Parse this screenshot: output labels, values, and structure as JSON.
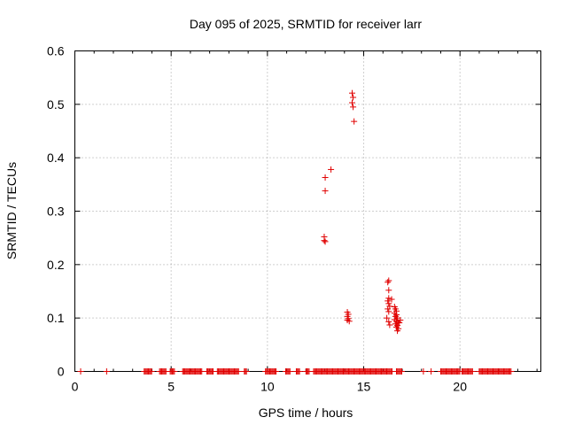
{
  "chart_data": {
    "type": "scatter",
    "title": "Day 095 of 2025, SRMTID for receiver larr",
    "xlabel": "GPS time / hours",
    "ylabel": "SRMTID / TECUs",
    "xlim": [
      0,
      24.2
    ],
    "ylim": [
      0,
      0.6
    ],
    "x_ticks": [
      0,
      5,
      10,
      15,
      20
    ],
    "y_ticks": [
      0,
      0.1,
      0.2,
      0.3,
      0.4,
      0.5,
      0.6
    ],
    "x_tick_labels": [
      "0",
      "5",
      "10",
      "15",
      "20"
    ],
    "y_tick_labels": [
      "0",
      "0.1",
      "0.2",
      "0.3",
      "0.4",
      "0.5",
      "0.6"
    ],
    "grid": true,
    "marker": "+",
    "color": "#e00000",
    "series": [
      {
        "name": "SRMTID",
        "points": [
          [
            13.0,
            0.363
          ],
          [
            13.0,
            0.338
          ],
          [
            13.3,
            0.378
          ],
          [
            12.95,
            0.252
          ],
          [
            12.95,
            0.245
          ],
          [
            13.0,
            0.243
          ],
          [
            14.4,
            0.521
          ],
          [
            14.45,
            0.513
          ],
          [
            14.4,
            0.503
          ],
          [
            14.45,
            0.495
          ],
          [
            14.5,
            0.468
          ],
          [
            14.15,
            0.111
          ],
          [
            14.2,
            0.107
          ],
          [
            14.15,
            0.103
          ],
          [
            14.2,
            0.099
          ],
          [
            14.15,
            0.096
          ],
          [
            14.25,
            0.094
          ],
          [
            16.3,
            0.17
          ],
          [
            16.25,
            0.167
          ],
          [
            16.3,
            0.152
          ],
          [
            16.3,
            0.137
          ],
          [
            16.25,
            0.132
          ],
          [
            16.3,
            0.127
          ],
          [
            16.35,
            0.122
          ],
          [
            16.25,
            0.117
          ],
          [
            16.3,
            0.112
          ],
          [
            16.45,
            0.135
          ],
          [
            16.2,
            0.1
          ],
          [
            16.3,
            0.093
          ],
          [
            16.35,
            0.087
          ],
          [
            16.6,
            0.121
          ],
          [
            16.65,
            0.117
          ],
          [
            16.7,
            0.113
          ],
          [
            16.6,
            0.109
          ],
          [
            16.7,
            0.106
          ],
          [
            16.65,
            0.103
          ],
          [
            16.75,
            0.1
          ],
          [
            16.6,
            0.097
          ],
          [
            16.7,
            0.094
          ],
          [
            16.8,
            0.092
          ],
          [
            16.65,
            0.089
          ],
          [
            16.75,
            0.086
          ],
          [
            16.7,
            0.083
          ],
          [
            16.8,
            0.08
          ],
          [
            16.75,
            0.076
          ],
          [
            16.9,
            0.096
          ],
          [
            16.85,
            0.091
          ]
        ],
        "zero_segments": [
          [
            0.3,
            0.3
          ],
          [
            1.65,
            1.65
          ],
          [
            3.6,
            4.0
          ],
          [
            4.4,
            4.75
          ],
          [
            4.95,
            5.2
          ],
          [
            5.6,
            6.6
          ],
          [
            6.85,
            7.2
          ],
          [
            7.4,
            8.5
          ],
          [
            8.8,
            8.95
          ],
          [
            9.9,
            10.5
          ],
          [
            10.95,
            11.2
          ],
          [
            11.5,
            11.7
          ],
          [
            12.0,
            12.2
          ],
          [
            12.4,
            16.5
          ],
          [
            16.7,
            17.0
          ],
          [
            18.1,
            18.1
          ],
          [
            18.5,
            18.5
          ],
          [
            19.0,
            20.0
          ],
          [
            20.1,
            20.7
          ],
          [
            21.0,
            22.7
          ]
        ]
      }
    ]
  }
}
